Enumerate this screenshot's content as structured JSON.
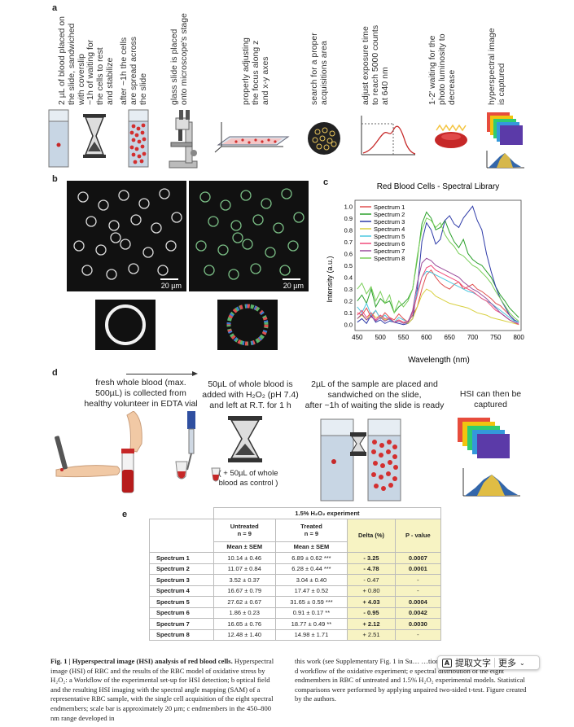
{
  "panels": {
    "a": "a",
    "b": "b",
    "c": "c",
    "d": "d",
    "e": "e"
  },
  "panel_a": {
    "steps": [
      "2 µL of blood placed on\nthe slide, sandwiched\nwith coverslip",
      "~1h of waiting for\nthe cells to rest\nand stabilize",
      "after ~1h the cells\nare spread across\nthe slide",
      "glass slide is placed\nonto microscope's stage",
      "properly adjusting\nthe focus along z\nand x-y axes",
      "search for a proper\nacquisitions area",
      "adjust exposure time\nto reach 5000 counts\nat 640 nm",
      "1-2' waiting for the\nphoto luminosity to\ndecrease",
      "hyperspectral image\nis captured"
    ]
  },
  "panel_b": {
    "scale_bar": "20 µm"
  },
  "chart_data": {
    "type": "line",
    "title": "Red Blood Cells - Spectral Library",
    "xlabel": "Wavelength (nm)",
    "ylabel": "Intensity (a.u.)",
    "xlim": [
      445,
      805
    ],
    "ylim": [
      -0.05,
      1.05
    ],
    "xticks": [
      450,
      500,
      550,
      600,
      650,
      700,
      750,
      800
    ],
    "yticks": [
      0.0,
      0.1,
      0.2,
      0.3,
      0.4,
      0.5,
      0.6,
      0.7,
      0.8,
      0.9,
      1.0
    ],
    "legend_position": "top-left",
    "x": [
      450,
      460,
      470,
      480,
      490,
      500,
      510,
      520,
      530,
      540,
      550,
      560,
      570,
      580,
      590,
      600,
      610,
      620,
      630,
      640,
      650,
      660,
      670,
      680,
      690,
      700,
      710,
      720,
      730,
      740,
      750,
      760,
      770,
      780,
      790,
      800
    ],
    "series": [
      {
        "name": "Spectrum 1",
        "color": "#e05050",
        "values": [
          0.1,
          0.08,
          0.14,
          0.06,
          0.12,
          0.05,
          0.1,
          0.06,
          0.04,
          0.09,
          0.05,
          0.02,
          0.08,
          0.15,
          0.3,
          0.42,
          0.46,
          0.4,
          0.35,
          0.32,
          0.3,
          0.34,
          0.36,
          0.3,
          0.32,
          0.34,
          0.3,
          0.28,
          0.25,
          0.22,
          0.18,
          0.16,
          0.12,
          0.08,
          0.04,
          0.02
        ]
      },
      {
        "name": "Spectrum 2",
        "color": "#2aa02a",
        "values": [
          0.2,
          0.25,
          0.18,
          0.3,
          0.15,
          0.22,
          0.18,
          0.2,
          0.1,
          0.15,
          0.18,
          0.22,
          0.3,
          0.55,
          0.85,
          0.95,
          0.9,
          0.8,
          0.82,
          0.88,
          0.78,
          0.7,
          0.65,
          0.72,
          0.6,
          0.55,
          0.52,
          0.5,
          0.45,
          0.4,
          0.32,
          0.25,
          0.2,
          0.14,
          0.1,
          0.06
        ]
      },
      {
        "name": "Spectrum 3",
        "color": "#2d3aa8",
        "values": [
          0.02,
          0.05,
          0.01,
          0.08,
          0.02,
          0.04,
          0.01,
          0.03,
          0.02,
          0.01,
          0.0,
          0.01,
          0.05,
          0.3,
          0.7,
          0.86,
          0.8,
          0.68,
          0.72,
          0.88,
          0.92,
          0.85,
          0.82,
          0.9,
          0.95,
          1.0,
          0.88,
          0.8,
          0.6,
          0.45,
          0.32,
          0.22,
          0.15,
          0.08,
          0.04,
          0.02
        ]
      },
      {
        "name": "Spectrum 4",
        "color": "#d8d040",
        "values": [
          0.05,
          0.08,
          0.04,
          0.1,
          0.06,
          0.07,
          0.04,
          0.05,
          0.02,
          0.04,
          0.02,
          0.01,
          0.05,
          0.15,
          0.25,
          0.3,
          0.28,
          0.24,
          0.22,
          0.2,
          0.18,
          0.17,
          0.16,
          0.15,
          0.14,
          0.12,
          0.1,
          0.09,
          0.08,
          0.06,
          0.05,
          0.04,
          0.03,
          0.02,
          0.01,
          0.0
        ]
      },
      {
        "name": "Spectrum 5",
        "color": "#4dc8e0",
        "values": [
          0.15,
          0.1,
          0.18,
          0.08,
          0.12,
          0.05,
          0.08,
          0.04,
          0.02,
          0.06,
          0.04,
          0.02,
          0.1,
          0.28,
          0.4,
          0.45,
          0.44,
          0.42,
          0.4,
          0.38,
          0.36,
          0.34,
          0.32,
          0.3,
          0.28,
          0.27,
          0.25,
          0.22,
          0.2,
          0.18,
          0.15,
          0.12,
          0.09,
          0.06,
          0.03,
          0.02
        ]
      },
      {
        "name": "Spectrum 6",
        "color": "#f04a7a",
        "values": [
          0.08,
          0.12,
          0.06,
          0.1,
          0.04,
          0.08,
          0.05,
          0.06,
          0.02,
          0.04,
          0.02,
          0.03,
          0.1,
          0.25,
          0.4,
          0.48,
          0.5,
          0.46,
          0.44,
          0.42,
          0.4,
          0.38,
          0.36,
          0.32,
          0.3,
          0.28,
          0.25,
          0.22,
          0.2,
          0.16,
          0.12,
          0.1,
          0.07,
          0.04,
          0.02,
          0.0
        ]
      },
      {
        "name": "Spectrum 7",
        "color": "#9a4a9a",
        "values": [
          0.05,
          0.09,
          0.04,
          0.07,
          0.03,
          0.06,
          0.03,
          0.05,
          0.02,
          0.03,
          0.01,
          0.02,
          0.12,
          0.35,
          0.52,
          0.56,
          0.54,
          0.5,
          0.48,
          0.46,
          0.44,
          0.42,
          0.4,
          0.36,
          0.33,
          0.3,
          0.28,
          0.25,
          0.22,
          0.18,
          0.14,
          0.1,
          0.07,
          0.04,
          0.02,
          0.01
        ]
      },
      {
        "name": "Spectrum 8",
        "color": "#7acf5a",
        "values": [
          0.3,
          0.35,
          0.26,
          0.32,
          0.2,
          0.28,
          0.18,
          0.25,
          0.1,
          0.2,
          0.15,
          0.2,
          0.3,
          0.58,
          0.8,
          0.9,
          0.88,
          0.82,
          0.86,
          0.76,
          0.7,
          0.66,
          0.6,
          0.58,
          0.54,
          0.5,
          0.48,
          0.44,
          0.4,
          0.35,
          0.28,
          0.22,
          0.16,
          0.1,
          0.06,
          0.03
        ]
      }
    ]
  },
  "panel_d": {
    "steps": [
      "fresh whole blood (max.\n500µL)  is collected from\nhealthy volunteer in EDTA vial",
      "50µL of whole blood is\nadded with H₂O₂ (pH 7.4)\nand left at R.T. for 1 h",
      "2µL of the sample are placed and\nsandwiched on the slide,\nafter ~1h of waiting the slide is ready",
      "HSI can then be captured"
    ],
    "control_note": "( + 50µL of whole\nblood as control )"
  },
  "table": {
    "title": "1.5% H₂O₂ experiment",
    "col_untreated": "Untreated\nn = 9",
    "col_treated": "Treated\nn = 9",
    "col_delta": "Delta (%)",
    "col_p": "P - value",
    "stat_untreated": "Mean ± SEM",
    "stat_treated": "Mean ± SEM",
    "rows": [
      {
        "label": "Spectrum 1",
        "untreated": "10.14 ± 0.46",
        "treated": "6.89 ± 0.62 ***",
        "delta": "- 3.25",
        "p": "0.0007"
      },
      {
        "label": "Spectrum 2",
        "untreated": "11.07 ± 0.84",
        "treated": "6.28 ± 0.44 ***",
        "delta": "- 4.78",
        "p": "0.0001"
      },
      {
        "label": "Spectrum 3",
        "untreated": "3.52 ± 0.37",
        "treated": "3.04 ± 0.40",
        "delta": "- 0.47",
        "p": "-"
      },
      {
        "label": "Spectrum 4",
        "untreated": "16.67 ± 0.79",
        "treated": "17.47 ± 0.52",
        "delta": "+ 0.80",
        "p": "-"
      },
      {
        "label": "Spectrum 5",
        "untreated": "27.62 ± 0.67",
        "treated": "31.65 ± 0.59 ***",
        "delta": "+ 4.03",
        "p": "0.0004"
      },
      {
        "label": "Spectrum 6",
        "untreated": "1.86 ± 0.23",
        "treated": "0.91 ± 0.17 **",
        "delta": "- 0.95",
        "p": "0.0042"
      },
      {
        "label": "Spectrum 7",
        "untreated": "16.65 ± 0.76",
        "treated": "18.77 ± 0.49 **",
        "delta": "+ 2.12",
        "p": "0.0030"
      },
      {
        "label": "Spectrum 8",
        "untreated": "12.48 ± 1.40",
        "treated": "14.98 ± 1.71",
        "delta": "+ 2.51",
        "p": "-"
      }
    ]
  },
  "caption": {
    "fig_label": "Fig. 1 | Hyperspectral image (HSI) analysis of red blood cells.",
    "left": " Hyperspectral image (HSI) of RBC and the results of the RBC model of oxidative stress by H₂O₂: a Workflow of the experimental set-up for HSI detection; b optical field and the resulting HSI imaging with the spectral angle mapping (SAM) of a representative RBC sample, with the single cell acquisition of the eight spectral endmembers; scale bar is approximately 20 µm; c endmembers in the 450–800 nm range developed in",
    "right": "this work (see Supplementary Fig. 1 in Su… …tion s of the spectral endmembers); d workflow of the oxidative experiment; e spectral distribution of the eight endmembers in RBC of untreated and 1.5% H₂O₂ experimental models. Statistical comparisons were performed by applying unpaired two-sided t-test. Figure created by the authors."
  },
  "overlay": {
    "translate": "提取文字",
    "more": "更多"
  }
}
